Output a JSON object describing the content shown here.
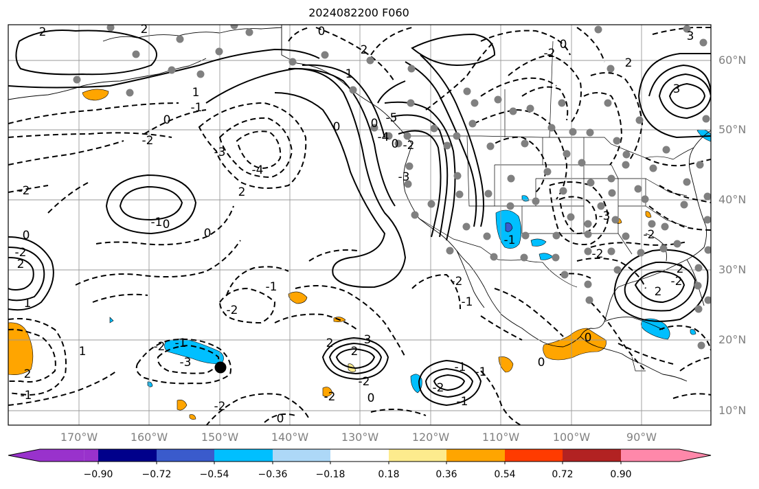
{
  "title": "2024082200 F060",
  "lat_labels": [
    "60°N",
    "50°N",
    "40°N",
    "30°N",
    "20°N",
    "10°N"
  ],
  "lon_labels": [
    "170°W",
    "160°W",
    "150°W",
    "140°W",
    "130°W",
    "120°W",
    "110°W",
    "100°W",
    "90°W"
  ],
  "colorbar": {
    "ticks": [
      "−0.90",
      "−0.72",
      "−0.54",
      "−0.36",
      "−0.18",
      "0.18",
      "0.36",
      "0.54",
      "0.72",
      "0.90"
    ],
    "colors": [
      "#9932cc",
      "#00008b",
      "#3a5bcc",
      "#00bfff",
      "#add8f7",
      "#ffffff",
      "#fdeb8d",
      "#ffa500",
      "#ff3b00",
      "#b22222",
      "#ff88aa"
    ]
  },
  "contour_labels": [
    "2",
    "2",
    "1",
    "0",
    "-1",
    "0",
    "2",
    "1",
    "0",
    "-2",
    "-3",
    "-4",
    "-1",
    "0",
    "2",
    "-2",
    "1",
    "0",
    "-1",
    "-2",
    "2",
    "1",
    "0",
    "-1",
    "-2",
    "-1",
    "-2",
    "-3",
    "3",
    "2",
    "-2",
    "2",
    "0",
    "-2",
    "-1",
    "-1",
    "-2",
    "0",
    "2",
    "-2",
    "-1",
    "-1",
    "-2",
    "0",
    "0",
    "-3",
    "-2",
    "-2",
    "3",
    "2",
    "3",
    "2",
    "2",
    "-2",
    "0",
    "-3",
    "-4",
    "-5",
    "0",
    "-2",
    "-2",
    "0",
    "-1"
  ]
}
